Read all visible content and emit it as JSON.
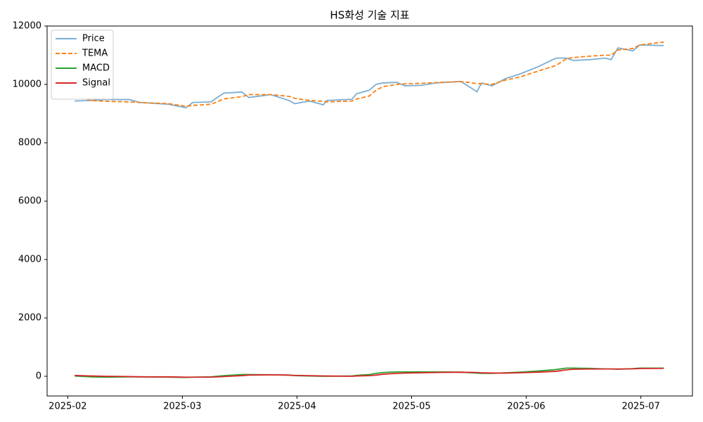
{
  "chart_data": {
    "type": "line",
    "title": "HS화성 기술 지표",
    "x": [
      2.06,
      2.2,
      2.33,
      2.54,
      2.63,
      2.88,
      3.03,
      3.09,
      3.25,
      3.36,
      3.52,
      3.58,
      3.77,
      3.93,
      3.98,
      4.11,
      4.23,
      4.26,
      4.48,
      4.52,
      4.63,
      4.69,
      4.75,
      4.87,
      4.94,
      5.09,
      5.21,
      5.43,
      5.57,
      5.61,
      5.7,
      5.82,
      5.94,
      6.1,
      6.26,
      6.35,
      6.41,
      6.56,
      6.69,
      6.74,
      6.8,
      6.93,
      6.99,
      7.2
    ],
    "series": [
      {
        "name": "Price",
        "color": "#7aaed3",
        "linestyle": "solid",
        "values": [
          9430,
          9450,
          9480,
          9480,
          9380,
          9320,
          9200,
          9380,
          9400,
          9700,
          9740,
          9550,
          9650,
          9450,
          9340,
          9430,
          9300,
          9450,
          9490,
          9680,
          9800,
          10000,
          10050,
          10070,
          9950,
          9970,
          10050,
          10100,
          9750,
          10050,
          9950,
          10200,
          10350,
          10600,
          10900,
          10900,
          10820,
          10850,
          10900,
          10850,
          11250,
          11150,
          11350,
          11330
        ]
      },
      {
        "name": "TEMA",
        "color": "#ff7f0e",
        "linestyle": "dashed",
        "values": [
          9650,
          9450,
          9420,
          9400,
          9380,
          9340,
          9250,
          9280,
          9320,
          9500,
          9580,
          9650,
          9650,
          9590,
          9520,
          9450,
          9420,
          9400,
          9430,
          9500,
          9600,
          9800,
          9920,
          10000,
          10020,
          10040,
          10060,
          10100,
          10030,
          10020,
          10000,
          10150,
          10250,
          10450,
          10650,
          10880,
          10920,
          10970,
          11000,
          11000,
          11180,
          11230,
          11350,
          11450
        ]
      },
      {
        "name": "MACD",
        "color": "#2ca02c",
        "linestyle": "solid",
        "values": [
          10,
          -20,
          -30,
          -20,
          -20,
          -30,
          -40,
          -30,
          -20,
          20,
          60,
          60,
          50,
          40,
          20,
          10,
          0,
          0,
          10,
          30,
          60,
          100,
          130,
          150,
          150,
          150,
          150,
          140,
          110,
          100,
          100,
          120,
          140,
          180,
          230,
          280,
          280,
          270,
          250,
          250,
          240,
          260,
          280,
          280
        ]
      },
      {
        "name": "Signal",
        "color": "#d62728",
        "linestyle": "solid",
        "values": [
          30,
          10,
          0,
          -10,
          -20,
          -20,
          -30,
          -30,
          -30,
          -10,
          20,
          40,
          50,
          40,
          30,
          20,
          10,
          10,
          0,
          10,
          20,
          40,
          70,
          100,
          110,
          120,
          130,
          140,
          130,
          120,
          110,
          110,
          120,
          140,
          170,
          220,
          240,
          250,
          250,
          250,
          250,
          255,
          265,
          270
        ]
      }
    ],
    "xlim": [
      1.82,
      7.45
    ],
    "xticks": [
      {
        "value": 2,
        "label": "2025-02"
      },
      {
        "value": 3,
        "label": "2025-03"
      },
      {
        "value": 4,
        "label": "2025-04"
      },
      {
        "value": 5,
        "label": "2025-05"
      },
      {
        "value": 6,
        "label": "2025-06"
      },
      {
        "value": 7,
        "label": "2025-07"
      }
    ],
    "ylim": [
      -675,
      12000
    ],
    "yticks": [
      0,
      2000,
      4000,
      6000,
      8000,
      10000,
      12000
    ],
    "grid": false,
    "legend": "upper left"
  }
}
